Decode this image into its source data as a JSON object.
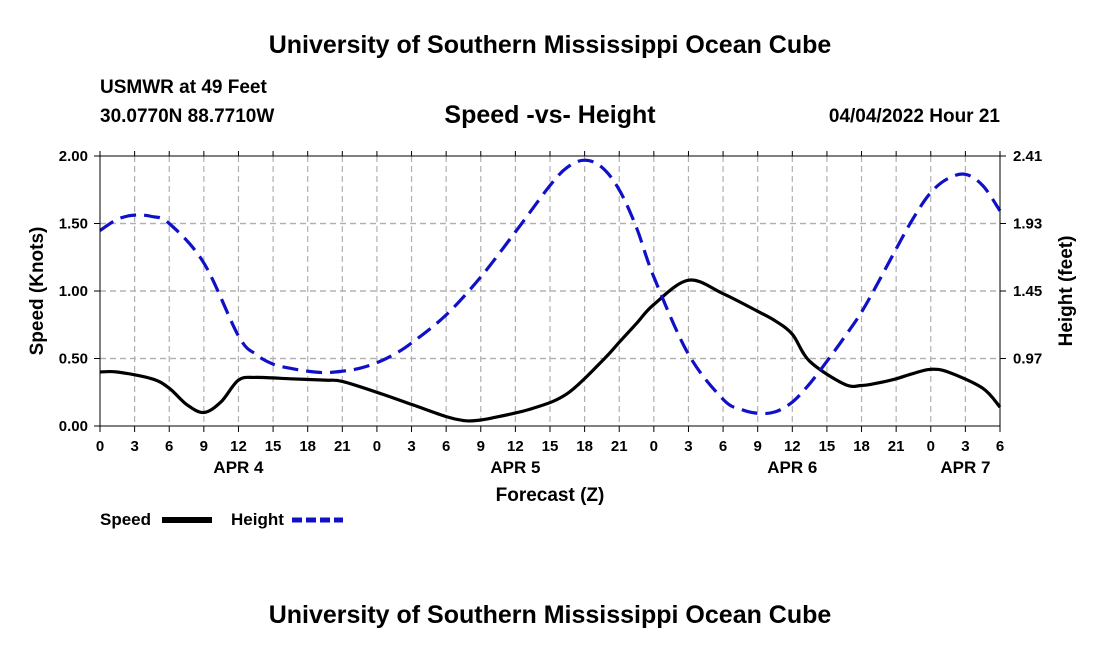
{
  "header": {
    "title": "University of Southern Mississippi Ocean Cube",
    "station": "USMWR at 49 Feet",
    "coords": "30.0770N  88.7710W",
    "subtitle": "Speed -vs- Height",
    "datetime": "04/04/2022 Hour 21"
  },
  "footer": {
    "title": "University of Southern Mississippi Ocean Cube"
  },
  "colors": {
    "speed": "#000000",
    "height": "#1010c8",
    "grid": "#b0b0b0"
  },
  "chart_data": {
    "type": "line",
    "title": "Speed -vs- Height",
    "xlabel": "Forecast (Z)",
    "ylabel": "Speed (Knots)",
    "y2label": "Height (feet)",
    "x_range_hours": [
      0,
      78
    ],
    "ylim": [
      0,
      2.0
    ],
    "y_ticks": [
      0.0,
      0.5,
      1.0,
      1.5,
      2.0
    ],
    "y_tick_labels": [
      "0.00",
      "0.50",
      "1.00",
      "1.50",
      "2.00"
    ],
    "y2lim": [
      0.49,
      2.41
    ],
    "y2_ticks": [
      0.97,
      1.45,
      1.93,
      2.41
    ],
    "y2_tick_labels": [
      "0.97",
      "1.45",
      "1.93",
      "2.41"
    ],
    "x_ticks": [
      0,
      3,
      6,
      9,
      12,
      15,
      18,
      21,
      24,
      27,
      30,
      33,
      36,
      39,
      42,
      45,
      48,
      51,
      54,
      57,
      60,
      63,
      66,
      69,
      72,
      75,
      78
    ],
    "x_tick_labels": [
      "0",
      "3",
      "6",
      "9",
      "12",
      "15",
      "18",
      "21",
      "0",
      "3",
      "6",
      "9",
      "12",
      "15",
      "18",
      "21",
      "0",
      "3",
      "6",
      "9",
      "12",
      "15",
      "18",
      "21",
      "0",
      "3",
      "6"
    ],
    "date_labels": [
      {
        "label": "APR 4",
        "hour": 12
      },
      {
        "label": "APR 5",
        "hour": 36
      },
      {
        "label": "APR 6",
        "hour": 60
      },
      {
        "label": "APR 7",
        "hour": 75
      }
    ],
    "series": [
      {
        "name": "Speed",
        "axis": "left",
        "style": "solid",
        "x": [
          0,
          1.5,
          4.5,
          6,
          7.5,
          9,
          10.5,
          12,
          13.5,
          16.5,
          19.5,
          21,
          24,
          27,
          30,
          31.5,
          32.5,
          34,
          37.5,
          40.5,
          43.5,
          45,
          46.5,
          48,
          51,
          54,
          57,
          58.5,
          60,
          61.5,
          64.5,
          66,
          67.5,
          69,
          70.5,
          72,
          73.5,
          76.5,
          78
        ],
        "values": [
          0.4,
          0.4,
          0.35,
          0.28,
          0.16,
          0.1,
          0.18,
          0.34,
          0.36,
          0.35,
          0.34,
          0.33,
          0.25,
          0.16,
          0.07,
          0.04,
          0.04,
          0.06,
          0.13,
          0.24,
          0.48,
          0.62,
          0.76,
          0.9,
          1.08,
          0.98,
          0.85,
          0.78,
          0.68,
          0.48,
          0.31,
          0.3,
          0.32,
          0.35,
          0.39,
          0.42,
          0.4,
          0.28,
          0.14
        ]
      },
      {
        "name": "Height",
        "axis": "right",
        "style": "dashed",
        "x": [
          0,
          1.5,
          3,
          4.5,
          6,
          9,
          12,
          13.5,
          15,
          16.5,
          18,
          19.5,
          21,
          22.5,
          24,
          25.5,
          27,
          30,
          33,
          36,
          39,
          40.5,
          42,
          43.5,
          45,
          46.5,
          48,
          51,
          54,
          55.5,
          57,
          58.5,
          60,
          61.5,
          63,
          64.5,
          66,
          67.5,
          69,
          70.5,
          72,
          73.5,
          75,
          76.5,
          78
        ],
        "values": [
          1.88,
          1.96,
          1.99,
          1.98,
          1.93,
          1.65,
          1.13,
          1.0,
          0.93,
          0.9,
          0.88,
          0.87,
          0.88,
          0.9,
          0.94,
          1.0,
          1.08,
          1.28,
          1.55,
          1.87,
          2.2,
          2.33,
          2.38,
          2.33,
          2.17,
          1.9,
          1.55,
          1.0,
          0.68,
          0.61,
          0.58,
          0.59,
          0.66,
          0.79,
          0.95,
          1.12,
          1.3,
          1.52,
          1.75,
          1.97,
          2.15,
          2.25,
          2.28,
          2.2,
          2.02
        ]
      }
    ],
    "legend": [
      {
        "name": "Speed",
        "style": "solid"
      },
      {
        "name": "Height",
        "style": "dashed"
      }
    ],
    "legend_position": "bottom-left",
    "grid": true
  }
}
